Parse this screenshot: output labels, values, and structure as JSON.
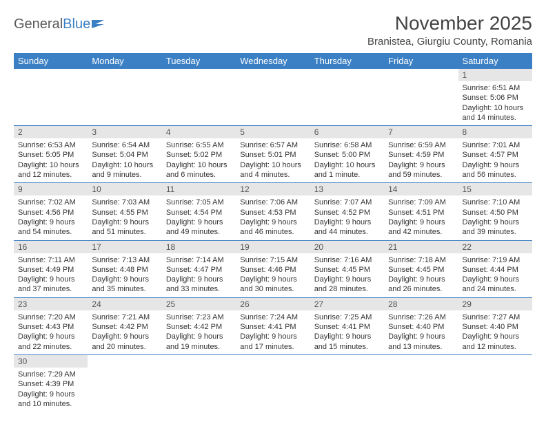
{
  "logo": {
    "text1": "General",
    "text2": "Blue"
  },
  "title": "November 2025",
  "location": "Branistea, Giurgiu County, Romania",
  "colors": {
    "header_bg": "#3b7fc4",
    "header_fg": "#ffffff",
    "daynum_bg": "#e6e6e6",
    "row_border": "#3b7fc4",
    "text": "#333333"
  },
  "typography": {
    "title_fontsize": 28,
    "location_fontsize": 15,
    "weekday_fontsize": 13,
    "daynum_fontsize": 12,
    "cell_fontsize": 11
  },
  "weekdays": [
    "Sunday",
    "Monday",
    "Tuesday",
    "Wednesday",
    "Thursday",
    "Friday",
    "Saturday"
  ],
  "weeks": [
    [
      {
        "empty": true
      },
      {
        "empty": true
      },
      {
        "empty": true
      },
      {
        "empty": true
      },
      {
        "empty": true
      },
      {
        "empty": true
      },
      {
        "n": "1",
        "sunrise": "6:51 AM",
        "sunset": "5:06 PM",
        "daylight": "10 hours and 14 minutes."
      }
    ],
    [
      {
        "n": "2",
        "sunrise": "6:53 AM",
        "sunset": "5:05 PM",
        "daylight": "10 hours and 12 minutes."
      },
      {
        "n": "3",
        "sunrise": "6:54 AM",
        "sunset": "5:04 PM",
        "daylight": "10 hours and 9 minutes."
      },
      {
        "n": "4",
        "sunrise": "6:55 AM",
        "sunset": "5:02 PM",
        "daylight": "10 hours and 6 minutes."
      },
      {
        "n": "5",
        "sunrise": "6:57 AM",
        "sunset": "5:01 PM",
        "daylight": "10 hours and 4 minutes."
      },
      {
        "n": "6",
        "sunrise": "6:58 AM",
        "sunset": "5:00 PM",
        "daylight": "10 hours and 1 minute."
      },
      {
        "n": "7",
        "sunrise": "6:59 AM",
        "sunset": "4:59 PM",
        "daylight": "9 hours and 59 minutes."
      },
      {
        "n": "8",
        "sunrise": "7:01 AM",
        "sunset": "4:57 PM",
        "daylight": "9 hours and 56 minutes."
      }
    ],
    [
      {
        "n": "9",
        "sunrise": "7:02 AM",
        "sunset": "4:56 PM",
        "daylight": "9 hours and 54 minutes."
      },
      {
        "n": "10",
        "sunrise": "7:03 AM",
        "sunset": "4:55 PM",
        "daylight": "9 hours and 51 minutes."
      },
      {
        "n": "11",
        "sunrise": "7:05 AM",
        "sunset": "4:54 PM",
        "daylight": "9 hours and 49 minutes."
      },
      {
        "n": "12",
        "sunrise": "7:06 AM",
        "sunset": "4:53 PM",
        "daylight": "9 hours and 46 minutes."
      },
      {
        "n": "13",
        "sunrise": "7:07 AM",
        "sunset": "4:52 PM",
        "daylight": "9 hours and 44 minutes."
      },
      {
        "n": "14",
        "sunrise": "7:09 AM",
        "sunset": "4:51 PM",
        "daylight": "9 hours and 42 minutes."
      },
      {
        "n": "15",
        "sunrise": "7:10 AM",
        "sunset": "4:50 PM",
        "daylight": "9 hours and 39 minutes."
      }
    ],
    [
      {
        "n": "16",
        "sunrise": "7:11 AM",
        "sunset": "4:49 PM",
        "daylight": "9 hours and 37 minutes."
      },
      {
        "n": "17",
        "sunrise": "7:13 AM",
        "sunset": "4:48 PM",
        "daylight": "9 hours and 35 minutes."
      },
      {
        "n": "18",
        "sunrise": "7:14 AM",
        "sunset": "4:47 PM",
        "daylight": "9 hours and 33 minutes."
      },
      {
        "n": "19",
        "sunrise": "7:15 AM",
        "sunset": "4:46 PM",
        "daylight": "9 hours and 30 minutes."
      },
      {
        "n": "20",
        "sunrise": "7:16 AM",
        "sunset": "4:45 PM",
        "daylight": "9 hours and 28 minutes."
      },
      {
        "n": "21",
        "sunrise": "7:18 AM",
        "sunset": "4:45 PM",
        "daylight": "9 hours and 26 minutes."
      },
      {
        "n": "22",
        "sunrise": "7:19 AM",
        "sunset": "4:44 PM",
        "daylight": "9 hours and 24 minutes."
      }
    ],
    [
      {
        "n": "23",
        "sunrise": "7:20 AM",
        "sunset": "4:43 PM",
        "daylight": "9 hours and 22 minutes."
      },
      {
        "n": "24",
        "sunrise": "7:21 AM",
        "sunset": "4:42 PM",
        "daylight": "9 hours and 20 minutes."
      },
      {
        "n": "25",
        "sunrise": "7:23 AM",
        "sunset": "4:42 PM",
        "daylight": "9 hours and 19 minutes."
      },
      {
        "n": "26",
        "sunrise": "7:24 AM",
        "sunset": "4:41 PM",
        "daylight": "9 hours and 17 minutes."
      },
      {
        "n": "27",
        "sunrise": "7:25 AM",
        "sunset": "4:41 PM",
        "daylight": "9 hours and 15 minutes."
      },
      {
        "n": "28",
        "sunrise": "7:26 AM",
        "sunset": "4:40 PM",
        "daylight": "9 hours and 13 minutes."
      },
      {
        "n": "29",
        "sunrise": "7:27 AM",
        "sunset": "4:40 PM",
        "daylight": "9 hours and 12 minutes."
      }
    ],
    [
      {
        "n": "30",
        "sunrise": "7:29 AM",
        "sunset": "4:39 PM",
        "daylight": "9 hours and 10 minutes."
      },
      {
        "empty": true
      },
      {
        "empty": true
      },
      {
        "empty": true
      },
      {
        "empty": true
      },
      {
        "empty": true
      },
      {
        "empty": true
      }
    ]
  ]
}
